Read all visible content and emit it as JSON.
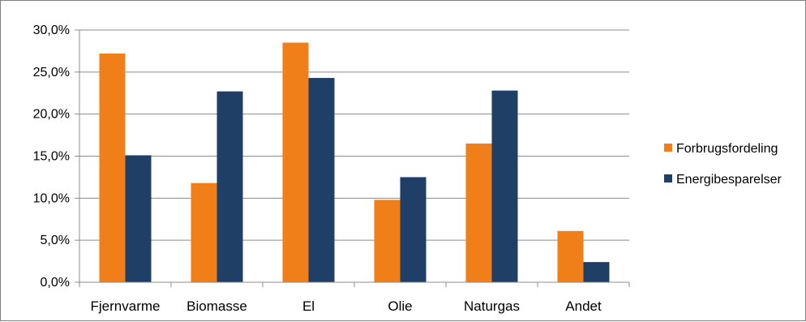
{
  "chart_data": {
    "type": "bar",
    "categories": [
      "Fjernvarme",
      "Biomasse",
      "El",
      "Olie",
      "Naturgas",
      "Andet"
    ],
    "series": [
      {
        "name": "Forbrugsfordeling",
        "color": "#f07f19",
        "values": [
          27.2,
          11.8,
          28.5,
          9.8,
          16.5,
          6.1
        ]
      },
      {
        "name": "Energibesparelser",
        "color": "#1f3f66",
        "values": [
          15.1,
          22.7,
          24.3,
          12.5,
          22.8,
          2.4
        ]
      }
    ],
    "ylim": [
      0,
      30
    ],
    "yticks": [
      "0,0%",
      "5,0%",
      "10,0%",
      "15,0%",
      "20,0%",
      "25,0%",
      "30,0%"
    ],
    "ytick_values": [
      0,
      5,
      10,
      15,
      20,
      25,
      30
    ],
    "grid": true,
    "legend_position": "right",
    "title": "",
    "xlabel": "",
    "ylabel": ""
  }
}
